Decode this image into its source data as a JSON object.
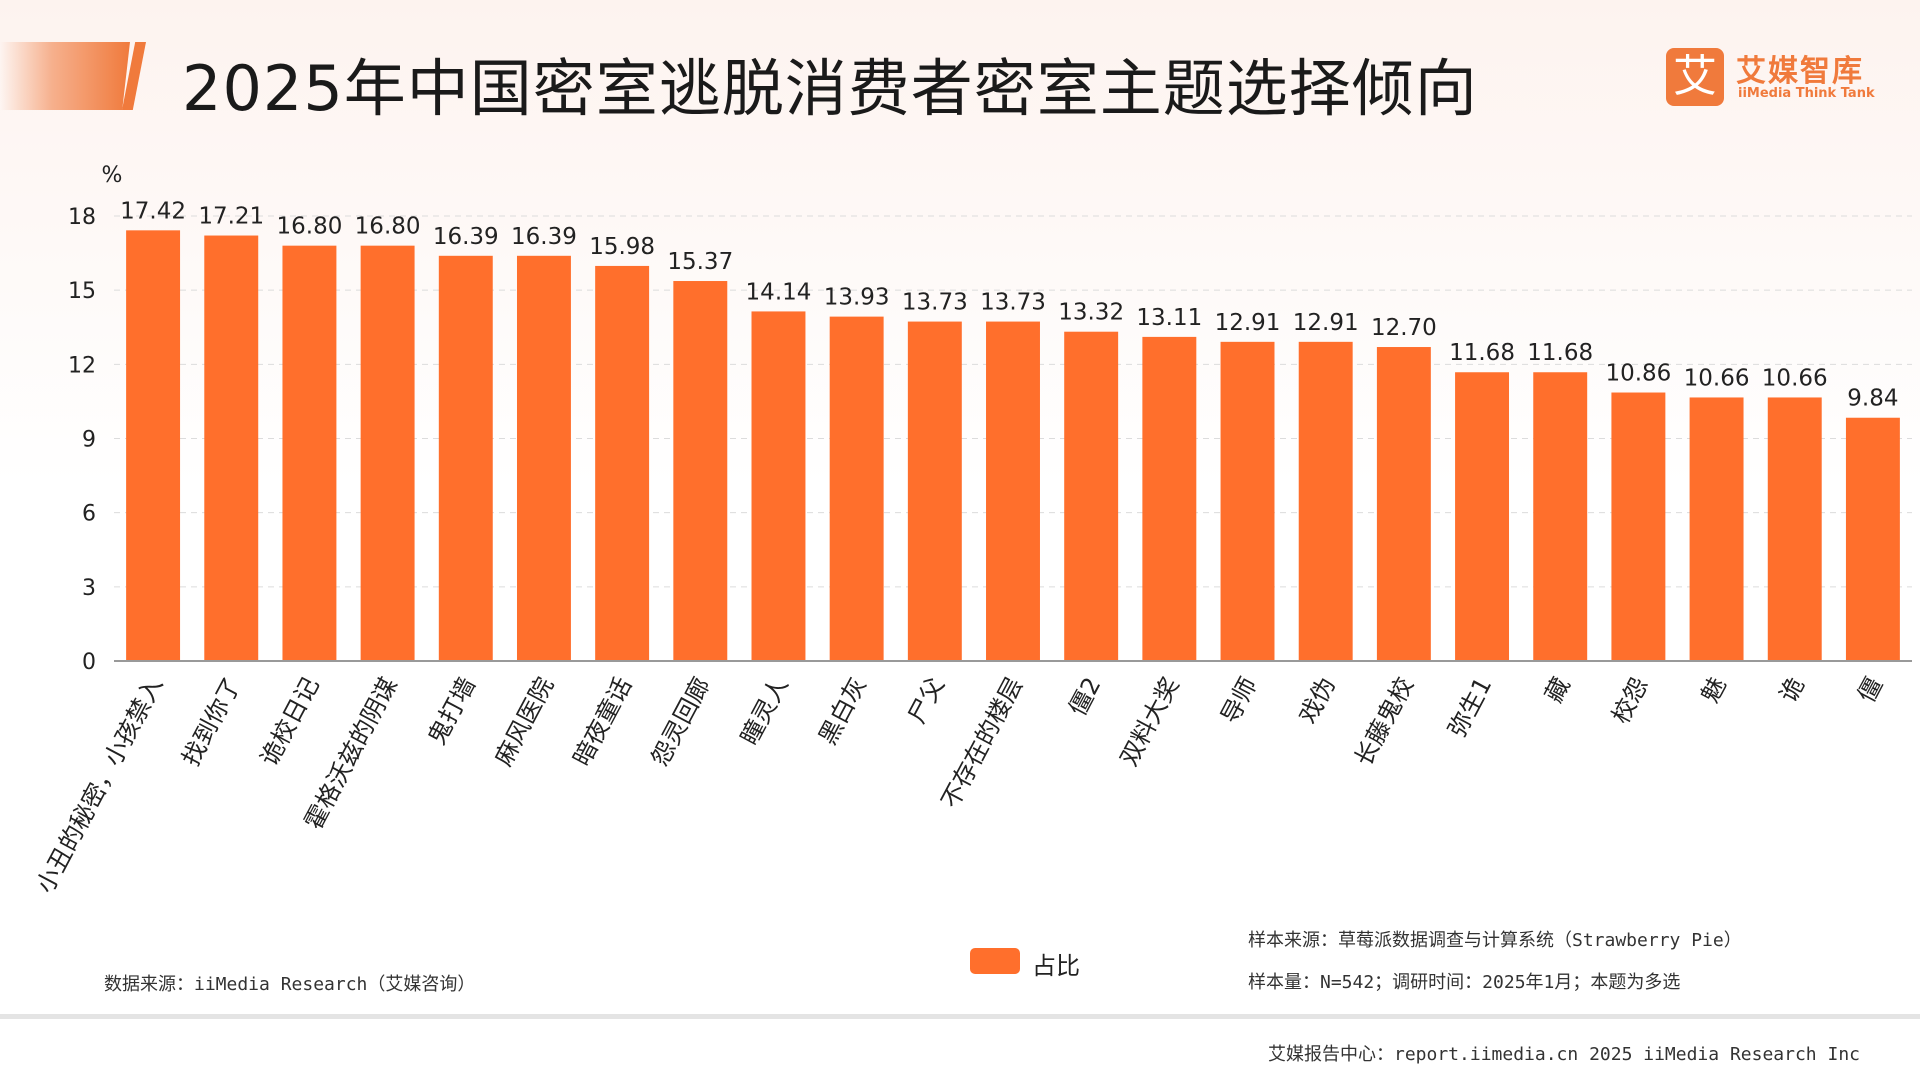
{
  "header": {
    "title": "2025年中国密室逃脱消费者密室主题选择倾向",
    "logo": {
      "mark": "艾",
      "name_cn": "艾媒智库",
      "name_en": "iiMedia Think Tank"
    }
  },
  "chart_data": {
    "type": "bar",
    "title": "2025年中国密室逃脱消费者密室主题选择倾向",
    "ylabel": "%",
    "ylim": [
      0,
      18
    ],
    "yticks": [
      0,
      3,
      6,
      9,
      12,
      15,
      18
    ],
    "grid": true,
    "legend_position": "bottom",
    "categories": [
      "小丑的秘密，小孩禁入",
      "找到你了",
      "诡校日记",
      "霍格沃兹的阴谋",
      "鬼打墙",
      "麻风医院",
      "暗夜童话",
      "怨灵回廊",
      "瞳灵人",
      "黑白灰",
      "尸父",
      "不存在的楼层",
      "僵2",
      "双料大奖",
      "导师",
      "戏伪",
      "长藤鬼校",
      "弥生1",
      "藏",
      "校怨",
      "魅",
      "诡",
      "僵"
    ],
    "series": [
      {
        "name": "占比",
        "color": "#ff6f2c",
        "values": [
          17.42,
          17.21,
          16.8,
          16.8,
          16.39,
          16.39,
          15.98,
          15.37,
          14.14,
          13.93,
          13.73,
          13.73,
          13.32,
          13.11,
          12.91,
          12.91,
          12.7,
          11.68,
          11.68,
          10.86,
          10.66,
          10.66,
          9.84
        ]
      }
    ]
  },
  "notes": {
    "data_source": "数据来源：iiMedia Research（艾媒咨询）",
    "sample_source": "样本来源：草莓派数据调查与计算系统（Strawberry Pie）",
    "sample_size": "样本量：N=542；调研时间：2025年1月；本题为多选"
  },
  "footer": {
    "text": "艾媒报告中心：report.iimedia.cn    2025 iiMedia Research Inc"
  },
  "colors": {
    "accent": "#f07a3c",
    "bar": "#ff6f2c"
  }
}
